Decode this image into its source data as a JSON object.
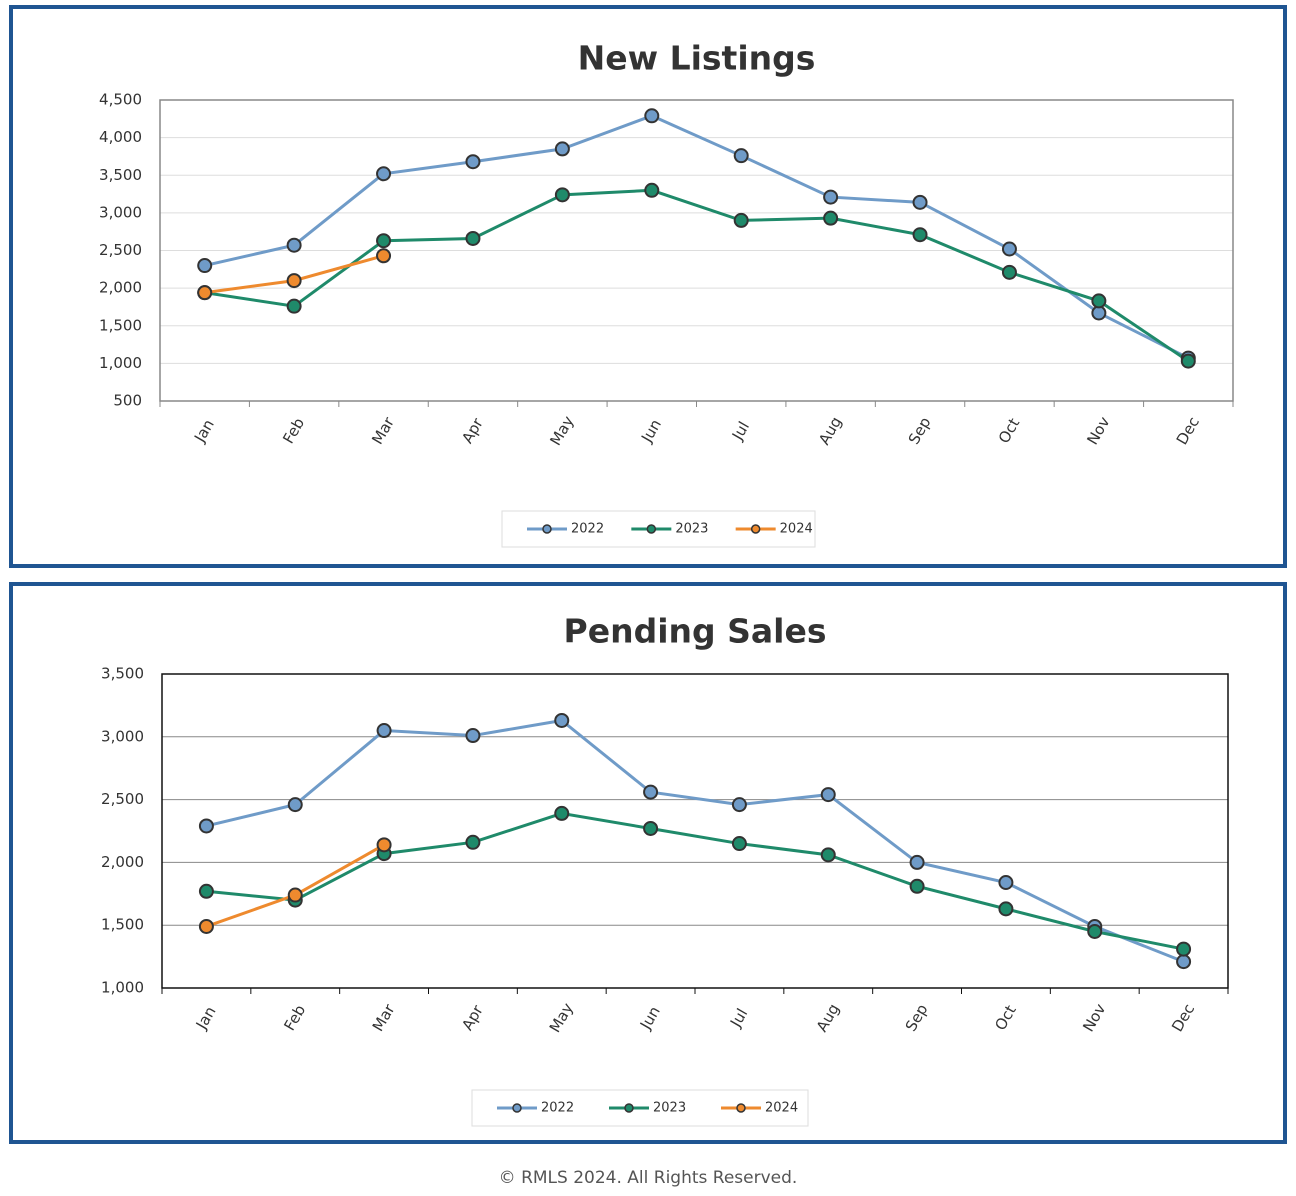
{
  "chart_data": [
    {
      "type": "line",
      "title": "New Listings",
      "categories": [
        "Jan",
        "Feb",
        "Mar",
        "Apr",
        "May",
        "Jun",
        "Jul",
        "Aug",
        "Sep",
        "Oct",
        "Nov",
        "Dec"
      ],
      "series": [
        {
          "name": "2022",
          "color": "#6f9bc8",
          "values": [
            2300,
            2570,
            3520,
            3680,
            3850,
            4290,
            3760,
            3210,
            3140,
            2520,
            1670,
            1070
          ]
        },
        {
          "name": "2023",
          "color": "#1f8a6a",
          "values": [
            1940,
            1760,
            2630,
            2660,
            3240,
            3300,
            2900,
            2930,
            2710,
            2210,
            1830,
            1030
          ]
        },
        {
          "name": "2024",
          "color": "#ee8a2e",
          "values": [
            1940,
            2100,
            2430,
            null,
            null,
            null,
            null,
            null,
            null,
            null,
            null,
            null
          ]
        }
      ],
      "ylim": [
        500,
        4500
      ],
      "yticks": [
        500,
        {
          "value": 1000,
          "label": "1,000"
        },
        {
          "value": 1500,
          "label": "1,500"
        },
        {
          "value": 2000,
          "label": "2,000"
        },
        {
          "value": 2500,
          "label": "2,500"
        },
        {
          "value": 3000,
          "label": "3,000"
        },
        {
          "value": 3500,
          "label": "3,500"
        },
        {
          "value": 4000,
          "label": "4,000"
        },
        {
          "value": 4500,
          "label": "4,500"
        }
      ],
      "grid": true,
      "legend": "bottom"
    },
    {
      "type": "line",
      "title": "Pending Sales",
      "categories": [
        "Jan",
        "Feb",
        "Mar",
        "Apr",
        "May",
        "Jun",
        "Jul",
        "Aug",
        "Sep",
        "Oct",
        "Nov",
        "Dec"
      ],
      "series": [
        {
          "name": "2022",
          "color": "#6f9bc8",
          "values": [
            2290,
            2460,
            3050,
            3010,
            3130,
            2560,
            2460,
            2540,
            2000,
            1840,
            1490,
            1210
          ]
        },
        {
          "name": "2023",
          "color": "#1f8a6a",
          "values": [
            1770,
            1700,
            2070,
            2160,
            2390,
            2270,
            2150,
            2060,
            1810,
            1630,
            1450,
            1310
          ]
        },
        {
          "name": "2024",
          "color": "#ee8a2e",
          "values": [
            1490,
            1740,
            2140,
            null,
            null,
            null,
            null,
            null,
            null,
            null,
            null,
            null
          ]
        }
      ],
      "ylim": [
        1000,
        3500
      ],
      "yticks": [
        {
          "value": 1000,
          "label": "1,000"
        },
        {
          "value": 1500,
          "label": "1,500"
        },
        {
          "value": 2000,
          "label": "2,000"
        },
        {
          "value": 2500,
          "label": "2,500"
        },
        {
          "value": 3000,
          "label": "3,000"
        },
        {
          "value": 3500,
          "label": "3,500"
        }
      ],
      "grid": true,
      "legend": "bottom"
    }
  ],
  "footer": "© RMLS 2024. All Rights Reserved."
}
